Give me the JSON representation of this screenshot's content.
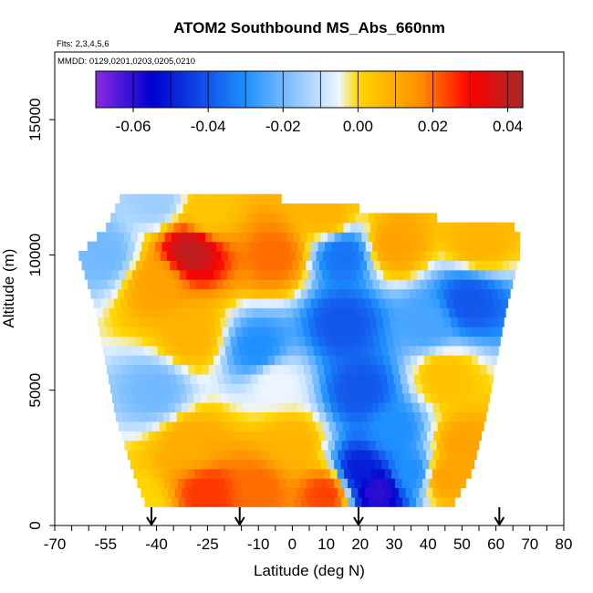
{
  "chart_data": {
    "type": "heatmap",
    "title": "ATOM2 Southbound MS_Abs_660nm",
    "subtitle_flights": "Flts: 2,3,4,5,6",
    "subtitle_dates": "MMDD: 0129,0201,0203,0205,0210",
    "xlabel": "Latitude (deg N)",
    "ylabel": "Altitude (m)",
    "xlim": [
      -70,
      80
    ],
    "ylim": [
      0,
      17500
    ],
    "x_ticks": [
      -70,
      -55,
      -40,
      -25,
      -10,
      0,
      10,
      20,
      30,
      40,
      50,
      60,
      70,
      80
    ],
    "y_ticks": [
      0,
      5000,
      10000,
      15000
    ],
    "colorbar": {
      "min": -0.07,
      "max": 0.044,
      "ticks": [
        -0.06,
        -0.04,
        -0.02,
        0.0,
        0.02,
        0.04
      ],
      "tick_labels": [
        "-0.06",
        "-0.04",
        "-0.02",
        "0.00",
        "0.02",
        "0.04"
      ],
      "colors": [
        "#8a2be2",
        "#0000cd",
        "#1e90ff",
        "#eef6ff",
        "#ffd700",
        "#ff8c00",
        "#ff0000",
        "#a52a2a"
      ],
      "color_stops": [
        -0.07,
        -0.055,
        -0.03,
        -0.005,
        0.0,
        0.017,
        0.03,
        0.044
      ]
    },
    "lat_range_by_altitude": [
      {
        "alt": 700,
        "lat": [
          -43,
          47
        ]
      },
      {
        "alt": 2000,
        "lat": [
          -47,
          53
        ]
      },
      {
        "alt": 4000,
        "lat": [
          -52,
          57
        ]
      },
      {
        "alt": 6000,
        "lat": [
          -55,
          60
        ]
      },
      {
        "alt": 8000,
        "lat": [
          -58,
          63
        ]
      },
      {
        "alt": 10000,
        "lat": [
          -63,
          67
        ]
      },
      {
        "alt": 11000,
        "lat": [
          -55,
          67
        ]
      },
      {
        "alt": 12300,
        "lat": [
          -50,
          -18
        ]
      }
    ],
    "features": [
      {
        "lat": -45,
        "alt": 700,
        "value": 0.0
      },
      {
        "lat": -25,
        "alt": 1200,
        "value": 0.025
      },
      {
        "lat": -10,
        "alt": 1400,
        "value": 0.02
      },
      {
        "lat": 10,
        "alt": 1200,
        "value": 0.024
      },
      {
        "lat": 25,
        "alt": 1300,
        "value": -0.06
      },
      {
        "lat": 20,
        "alt": 2000,
        "value": -0.05
      },
      {
        "lat": 35,
        "alt": 2000,
        "value": -0.03
      },
      {
        "lat": 45,
        "alt": 1800,
        "value": 0.012
      },
      {
        "lat": -30,
        "alt": 3000,
        "value": 0.01
      },
      {
        "lat": 0,
        "alt": 3000,
        "value": 0.008
      },
      {
        "lat": 30,
        "alt": 3500,
        "value": -0.03
      },
      {
        "lat": 50,
        "alt": 3000,
        "value": 0.012
      },
      {
        "lat": -40,
        "alt": 5000,
        "value": -0.02
      },
      {
        "lat": -5,
        "alt": 5300,
        "value": -0.005
      },
      {
        "lat": 20,
        "alt": 5000,
        "value": -0.04
      },
      {
        "lat": 45,
        "alt": 5500,
        "value": 0.005
      },
      {
        "lat": -30,
        "alt": 7000,
        "value": 0.008
      },
      {
        "lat": -10,
        "alt": 6500,
        "value": -0.03
      },
      {
        "lat": 15,
        "alt": 7500,
        "value": -0.04
      },
      {
        "lat": 40,
        "alt": 7500,
        "value": -0.025
      },
      {
        "lat": 52,
        "alt": 8300,
        "value": -0.04
      },
      {
        "lat": -40,
        "alt": 9000,
        "value": 0.012
      },
      {
        "lat": -30,
        "alt": 10200,
        "value": 0.04
      },
      {
        "lat": -5,
        "alt": 10000,
        "value": 0.02
      },
      {
        "lat": 15,
        "alt": 10000,
        "value": -0.035
      },
      {
        "lat": 30,
        "alt": 10400,
        "value": 0.012
      },
      {
        "lat": 55,
        "alt": 10500,
        "value": 0.008
      },
      {
        "lat": -55,
        "alt": 10000,
        "value": -0.02
      },
      {
        "lat": -40,
        "alt": 12000,
        "value": -0.015
      },
      {
        "lat": -25,
        "alt": 11500,
        "value": 0.004
      },
      {
        "lat": 10,
        "alt": 11500,
        "value": 0.008
      }
    ],
    "flight_markers_lat": [
      -41.5,
      -15.5,
      19.5,
      61
    ]
  }
}
